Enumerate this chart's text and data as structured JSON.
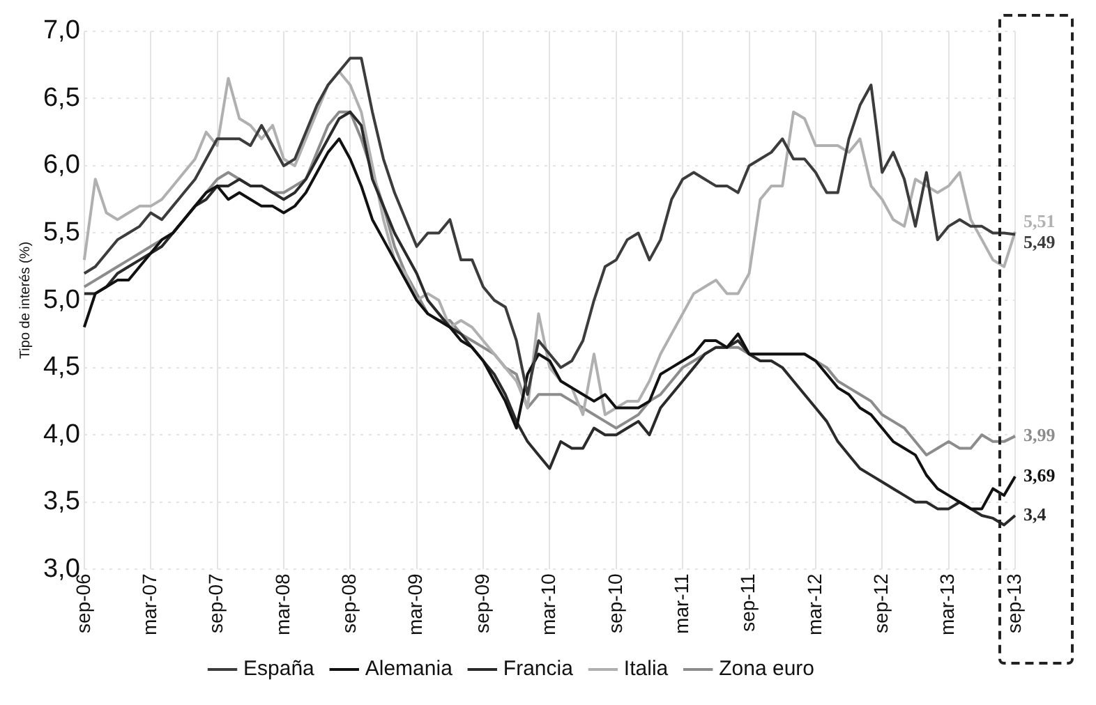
{
  "chart_data": {
    "type": "line",
    "ylabel": "Tipo de interés (%)",
    "categories": [
      "sep-06",
      null,
      null,
      null,
      null,
      null,
      "mar-07",
      null,
      null,
      null,
      null,
      null,
      "sep-07",
      null,
      null,
      null,
      null,
      null,
      "mar-08",
      null,
      null,
      null,
      null,
      null,
      "sep-08",
      null,
      null,
      null,
      null,
      null,
      "mar-09",
      null,
      null,
      null,
      null,
      null,
      "sep-09",
      null,
      null,
      null,
      null,
      null,
      "mar-10",
      null,
      null,
      null,
      null,
      null,
      "sep-10",
      null,
      null,
      null,
      null,
      null,
      "mar-11",
      null,
      null,
      null,
      null,
      null,
      "sep-11",
      null,
      null,
      null,
      null,
      null,
      "mar-12",
      null,
      null,
      null,
      null,
      null,
      "sep-12",
      null,
      null,
      null,
      null,
      null,
      "mar-13",
      null,
      null,
      null,
      null,
      null,
      "sep-13"
    ],
    "series": [
      {
        "name": "España",
        "color": "#3c3c3c",
        "values": [
          5.2,
          5.25,
          5.35,
          5.45,
          5.5,
          5.55,
          5.65,
          5.6,
          5.7,
          5.8,
          5.9,
          6.05,
          6.2,
          6.2,
          6.2,
          6.15,
          6.3,
          6.15,
          6.0,
          6.05,
          6.25,
          6.45,
          6.6,
          6.7,
          6.8,
          6.8,
          6.4,
          6.05,
          5.8,
          5.6,
          5.4,
          5.5,
          5.5,
          5.6,
          5.3,
          5.3,
          5.1,
          5.0,
          4.95,
          4.7,
          4.3,
          4.7,
          4.6,
          4.5,
          4.55,
          4.7,
          5.0,
          5.25,
          5.3,
          5.45,
          5.5,
          5.3,
          5.45,
          5.75,
          5.9,
          5.95,
          5.9,
          5.85,
          5.85,
          5.8,
          6.0,
          6.05,
          6.1,
          6.2,
          6.05,
          6.05,
          5.95,
          5.8,
          5.8,
          6.2,
          6.45,
          6.6,
          5.95,
          6.1,
          5.9,
          5.55,
          5.95,
          5.45,
          5.55,
          5.6,
          5.55,
          5.55,
          5.5,
          5.5,
          5.49
        ],
        "value_labels": [
          null,
          null,
          null,
          null,
          null,
          null,
          null,
          null,
          null,
          null,
          null,
          null,
          null,
          null,
          null,
          null,
          null,
          null,
          null,
          null,
          null,
          null,
          null,
          null,
          null,
          null,
          null,
          null,
          null,
          null,
          null,
          null,
          null,
          null,
          null,
          null,
          null,
          null,
          null,
          null,
          null,
          null,
          null,
          null,
          null,
          null,
          null,
          null,
          null,
          null,
          null,
          null,
          null,
          null,
          null,
          null,
          null,
          null,
          null,
          null,
          null,
          null,
          null,
          null,
          null,
          null,
          null,
          null,
          null,
          null,
          null,
          null,
          null,
          null,
          null,
          null,
          null,
          null,
          null,
          null,
          null,
          null,
          null,
          null,
          "5,49"
        ]
      },
      {
        "name": "Alemania",
        "color": "#111111",
        "values": [
          4.8,
          5.05,
          5.1,
          5.15,
          5.15,
          5.25,
          5.35,
          5.45,
          5.5,
          5.6,
          5.7,
          5.8,
          5.85,
          5.75,
          5.8,
          5.75,
          5.7,
          5.7,
          5.65,
          5.7,
          5.8,
          5.95,
          6.1,
          6.2,
          6.05,
          5.85,
          5.6,
          5.45,
          5.3,
          5.15,
          5.0,
          4.9,
          4.85,
          4.8,
          4.7,
          4.65,
          4.55,
          4.4,
          4.25,
          4.05,
          4.45,
          4.6,
          4.55,
          4.4,
          4.35,
          4.3,
          4.25,
          4.3,
          4.2,
          4.2,
          4.2,
          4.25,
          4.45,
          4.5,
          4.55,
          4.6,
          4.7,
          4.7,
          4.65,
          4.75,
          4.6,
          4.6,
          4.6,
          4.6,
          4.6,
          4.6,
          4.55,
          4.45,
          4.35,
          4.3,
          4.2,
          4.15,
          4.05,
          3.95,
          3.9,
          3.85,
          3.7,
          3.6,
          3.55,
          3.5,
          3.45,
          3.45,
          3.6,
          3.55,
          3.69
        ],
        "value_labels": [
          null,
          null,
          null,
          null,
          null,
          null,
          null,
          null,
          null,
          null,
          null,
          null,
          null,
          null,
          null,
          null,
          null,
          null,
          null,
          null,
          null,
          null,
          null,
          null,
          null,
          null,
          null,
          null,
          null,
          null,
          null,
          null,
          null,
          null,
          null,
          null,
          null,
          null,
          null,
          null,
          null,
          null,
          null,
          null,
          null,
          null,
          null,
          null,
          null,
          null,
          null,
          null,
          null,
          null,
          null,
          null,
          null,
          null,
          null,
          null,
          null,
          null,
          null,
          null,
          null,
          null,
          null,
          null,
          null,
          null,
          null,
          null,
          null,
          null,
          null,
          null,
          null,
          null,
          null,
          null,
          null,
          null,
          null,
          null,
          "3,69"
        ]
      },
      {
        "name": "Francia",
        "color": "#2a2a2a",
        "values": [
          5.05,
          5.05,
          5.1,
          5.2,
          5.25,
          5.3,
          5.35,
          5.4,
          5.5,
          5.6,
          5.7,
          5.75,
          5.85,
          5.85,
          5.9,
          5.85,
          5.85,
          5.8,
          5.75,
          5.8,
          5.9,
          6.05,
          6.2,
          6.35,
          6.4,
          6.3,
          5.9,
          5.7,
          5.5,
          5.35,
          5.2,
          5.0,
          4.9,
          4.8,
          4.75,
          4.65,
          4.55,
          4.45,
          4.3,
          4.1,
          3.95,
          3.85,
          3.75,
          3.95,
          3.9,
          3.9,
          4.05,
          4.0,
          4.0,
          4.05,
          4.1,
          4.0,
          4.2,
          4.3,
          4.4,
          4.5,
          4.6,
          4.65,
          4.65,
          4.7,
          4.6,
          4.55,
          4.55,
          4.5,
          4.4,
          4.3,
          4.2,
          4.1,
          3.95,
          3.85,
          3.75,
          3.7,
          3.65,
          3.6,
          3.55,
          3.5,
          3.5,
          3.45,
          3.45,
          3.5,
          3.45,
          3.4,
          3.38,
          3.33,
          3.4
        ],
        "value_labels": [
          null,
          null,
          null,
          null,
          null,
          null,
          null,
          null,
          null,
          null,
          null,
          null,
          null,
          null,
          null,
          null,
          null,
          null,
          null,
          null,
          null,
          null,
          null,
          null,
          null,
          null,
          null,
          null,
          null,
          null,
          null,
          null,
          null,
          null,
          null,
          null,
          null,
          null,
          null,
          null,
          null,
          null,
          null,
          null,
          null,
          null,
          null,
          null,
          null,
          null,
          null,
          null,
          null,
          null,
          null,
          null,
          null,
          null,
          null,
          null,
          null,
          null,
          null,
          null,
          null,
          null,
          null,
          null,
          null,
          null,
          null,
          null,
          null,
          null,
          null,
          null,
          null,
          null,
          null,
          null,
          null,
          null,
          null,
          null,
          "3,4"
        ]
      },
      {
        "name": "Italia",
        "color": "#b0b0b0",
        "values": [
          5.3,
          5.9,
          5.65,
          5.6,
          5.65,
          5.7,
          5.7,
          5.75,
          5.85,
          5.95,
          6.05,
          6.25,
          6.15,
          6.65,
          6.35,
          6.3,
          6.2,
          6.3,
          6.05,
          6.0,
          6.2,
          6.4,
          6.6,
          6.7,
          6.6,
          6.4,
          6.0,
          5.6,
          5.3,
          5.2,
          5.0,
          5.05,
          5.0,
          4.8,
          4.85,
          4.8,
          4.7,
          4.6,
          4.5,
          4.4,
          4.2,
          4.9,
          4.5,
          4.4,
          4.35,
          4.15,
          4.6,
          4.15,
          4.2,
          4.25,
          4.25,
          4.4,
          4.6,
          4.75,
          4.9,
          5.05,
          5.1,
          5.15,
          5.05,
          5.05,
          5.2,
          5.75,
          5.85,
          5.85,
          6.4,
          6.35,
          6.15,
          6.15,
          6.15,
          6.1,
          6.2,
          5.85,
          5.75,
          5.6,
          5.55,
          5.9,
          5.85,
          5.8,
          5.85,
          5.95,
          5.6,
          5.45,
          5.3,
          5.25,
          5.51
        ],
        "value_labels": [
          null,
          null,
          null,
          null,
          null,
          null,
          null,
          null,
          null,
          null,
          null,
          null,
          null,
          null,
          null,
          null,
          null,
          null,
          null,
          null,
          null,
          null,
          null,
          null,
          null,
          null,
          null,
          null,
          null,
          null,
          null,
          null,
          null,
          null,
          null,
          null,
          null,
          null,
          null,
          null,
          null,
          null,
          null,
          null,
          null,
          null,
          null,
          null,
          null,
          null,
          null,
          null,
          null,
          null,
          null,
          null,
          null,
          null,
          null,
          null,
          null,
          null,
          null,
          null,
          null,
          null,
          null,
          null,
          null,
          null,
          null,
          null,
          null,
          null,
          null,
          null,
          null,
          null,
          null,
          null,
          null,
          null,
          null,
          null,
          "5,51"
        ]
      },
      {
        "name": "Zona euro",
        "color": "#8c8c8c",
        "values": [
          5.1,
          5.15,
          5.2,
          5.25,
          5.3,
          5.35,
          5.4,
          5.45,
          5.5,
          5.6,
          5.7,
          5.8,
          5.9,
          5.95,
          5.9,
          5.85,
          5.85,
          5.8,
          5.8,
          5.85,
          5.9,
          6.1,
          6.3,
          6.4,
          6.4,
          6.2,
          5.95,
          5.7,
          5.4,
          5.2,
          5.05,
          4.9,
          4.85,
          4.85,
          4.75,
          4.7,
          4.65,
          4.6,
          4.5,
          4.45,
          4.2,
          4.3,
          4.3,
          4.3,
          4.25,
          4.2,
          4.15,
          4.1,
          4.05,
          4.1,
          4.15,
          4.25,
          4.3,
          4.4,
          4.5,
          4.55,
          4.6,
          4.65,
          4.65,
          4.65,
          4.6,
          4.6,
          4.6,
          4.6,
          4.6,
          4.6,
          4.55,
          4.5,
          4.4,
          4.35,
          4.3,
          4.25,
          4.15,
          4.1,
          4.05,
          3.95,
          3.85,
          3.9,
          3.95,
          3.9,
          3.9,
          4.0,
          3.95,
          3.95,
          3.99
        ],
        "value_labels": [
          null,
          null,
          null,
          null,
          null,
          null,
          null,
          null,
          null,
          null,
          null,
          null,
          null,
          null,
          null,
          null,
          null,
          null,
          null,
          null,
          null,
          null,
          null,
          null,
          null,
          null,
          null,
          null,
          null,
          null,
          null,
          null,
          null,
          null,
          null,
          null,
          null,
          null,
          null,
          null,
          null,
          null,
          null,
          null,
          null,
          null,
          null,
          null,
          null,
          null,
          null,
          null,
          null,
          null,
          null,
          null,
          null,
          null,
          null,
          null,
          null,
          null,
          null,
          null,
          null,
          null,
          null,
          null,
          null,
          null,
          null,
          null,
          null,
          null,
          null,
          null,
          null,
          null,
          null,
          null,
          null,
          null,
          null,
          null,
          "3,99"
        ]
      }
    ],
    "ylim": [
      3,
      7
    ],
    "yticks": [
      {
        "value": 3,
        "label": "3,0"
      },
      {
        "value": 3.5,
        "label": "3,5"
      },
      {
        "value": 4,
        "label": "4,0"
      },
      {
        "value": 4.5,
        "label": "4,5"
      },
      {
        "value": 5,
        "label": "5,0"
      },
      {
        "value": 5.5,
        "label": "5,5"
      },
      {
        "value": 6,
        "label": "6,0"
      },
      {
        "value": 6.5,
        "label": "6,5"
      },
      {
        "value": 7,
        "label": "7,0"
      }
    ],
    "grid": true,
    "legend": "bottom",
    "marker": "none",
    "line_style": "solid"
  }
}
